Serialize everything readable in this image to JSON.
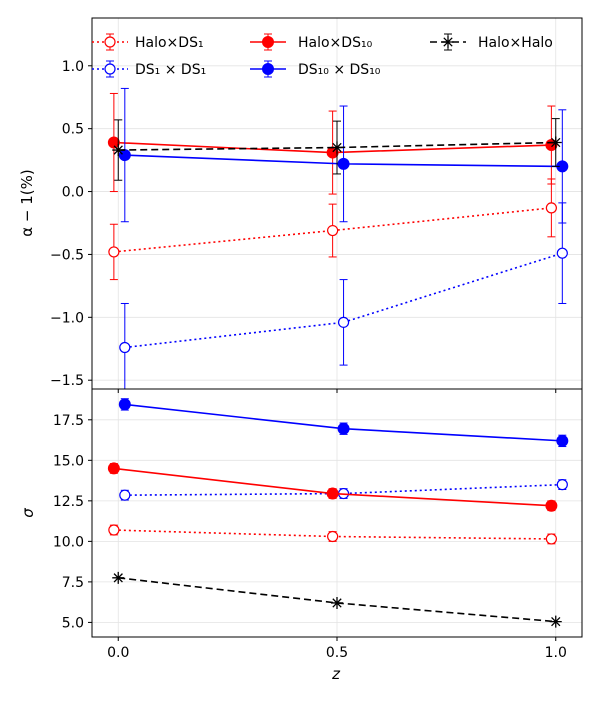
{
  "chart_data": [
    {
      "type": "line",
      "panel": "top",
      "ylabel": "α − 1(%)",
      "xlim": [
        -0.06,
        1.06
      ],
      "ylim": [
        -1.57,
        1.38
      ],
      "yticks": [
        -1.5,
        -1.0,
        -0.5,
        0.0,
        0.5,
        1.0
      ],
      "ytick_labels": [
        "−1.5",
        "−1.0",
        "−0.5",
        "0.0",
        "0.5",
        "1.0"
      ],
      "grid": true,
      "legend_position": "top",
      "series": [
        {
          "name": "Halo×DS₁",
          "color": "#ff0000",
          "dash": "dotted",
          "marker": "open-circle",
          "x": [
            -0.01,
            0.49,
            0.99
          ],
          "y": [
            -0.48,
            -0.31,
            -0.13
          ],
          "err": [
            0.22,
            0.21,
            0.23
          ]
        },
        {
          "name": "DS₁ × DS₁",
          "color": "#0000ff",
          "dash": "dotted",
          "marker": "open-circle",
          "x": [
            0.015,
            0.515,
            1.015
          ],
          "y": [
            -1.24,
            -1.04,
            -0.49
          ],
          "err": [
            0.35,
            0.34,
            0.4
          ]
        },
        {
          "name": "Halo×DS₁₀",
          "color": "#ff0000",
          "dash": "solid",
          "marker": "filled-circle",
          "x": [
            -0.01,
            0.49,
            0.99
          ],
          "y": [
            0.39,
            0.31,
            0.37
          ],
          "err": [
            0.39,
            0.33,
            0.31
          ]
        },
        {
          "name": "DS₁₀ × DS₁₀",
          "color": "#0000ff",
          "dash": "solid",
          "marker": "filled-circle",
          "x": [
            0.015,
            0.515,
            1.015
          ],
          "y": [
            0.29,
            0.22,
            0.2
          ],
          "err": [
            0.53,
            0.46,
            0.45
          ]
        },
        {
          "name": "Halo×Halo",
          "color": "#000000",
          "dash": "dashed",
          "marker": "star",
          "x": [
            0.0,
            0.5,
            1.0
          ],
          "y": [
            0.33,
            0.35,
            0.39
          ],
          "err": [
            0.24,
            0.21,
            0.19
          ]
        }
      ]
    },
    {
      "type": "line",
      "panel": "bottom",
      "xlabel": "z",
      "ylabel": "σ",
      "xlim": [
        -0.06,
        1.06
      ],
      "ylim": [
        4.1,
        19.4
      ],
      "xticks": [
        0.0,
        0.5,
        1.0
      ],
      "xtick_labels": [
        "0.0",
        "0.5",
        "1.0"
      ],
      "yticks": [
        5.0,
        7.5,
        10.0,
        12.5,
        15.0,
        17.5
      ],
      "ytick_labels": [
        "5.0",
        "7.5",
        "10.0",
        "12.5",
        "15.0",
        "17.5"
      ],
      "grid": true,
      "series": [
        {
          "name": "Halo×DS₁",
          "color": "#ff0000",
          "dash": "dotted",
          "marker": "open-circle",
          "x": [
            -0.01,
            0.49,
            0.99
          ],
          "y": [
            10.7,
            10.3,
            10.15
          ],
          "err": [
            0.3,
            0.3,
            0.3
          ]
        },
        {
          "name": "DS₁ × DS₁",
          "color": "#0000ff",
          "dash": "dotted",
          "marker": "open-circle",
          "x": [
            0.015,
            0.515,
            1.015
          ],
          "y": [
            12.85,
            12.95,
            13.5
          ],
          "err": [
            0.3,
            0.3,
            0.3
          ]
        },
        {
          "name": "Halo×DS₁₀",
          "color": "#ff0000",
          "dash": "solid",
          "marker": "filled-circle",
          "x": [
            -0.01,
            0.49,
            0.99
          ],
          "y": [
            14.5,
            12.95,
            12.2
          ],
          "err": [
            0.3,
            0.3,
            0.3
          ]
        },
        {
          "name": "DS₁₀ × DS₁₀",
          "color": "#0000ff",
          "dash": "solid",
          "marker": "filled-circle",
          "x": [
            0.015,
            0.515,
            1.015
          ],
          "y": [
            18.45,
            16.95,
            16.2
          ],
          "err": [
            0.35,
            0.35,
            0.35
          ]
        },
        {
          "name": "Halo×Halo",
          "color": "#000000",
          "dash": "dashed",
          "marker": "star",
          "x": [
            0.0,
            0.5,
            1.0
          ],
          "y": [
            7.75,
            6.2,
            5.05
          ],
          "err": [
            0.0,
            0.0,
            0.0
          ]
        }
      ]
    }
  ]
}
